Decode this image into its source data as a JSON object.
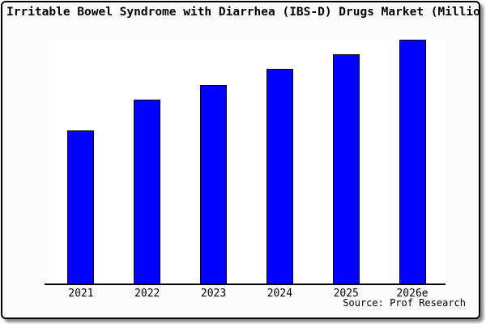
{
  "chart": {
    "title": "Irritable Bowel Syndrome with Diarrhea (IBS-D) Drugs Market (Millio",
    "source": "Source: Prof Research",
    "bar_color": "#0000fe",
    "background_color": "#fafafa",
    "plot_background_color": "#ffffff"
  },
  "chart_data": {
    "type": "bar",
    "title": "Irritable Bowel Syndrome with Diarrhea (IBS-D) Drugs Market (Millio",
    "categories": [
      "2021",
      "2022",
      "2023",
      "2024",
      "2025",
      "2026e"
    ],
    "values": [
      62.8,
      75.2,
      81.4,
      88.0,
      93.9,
      100.0
    ],
    "xlabel": "",
    "ylabel": "",
    "ylim": [
      0,
      101
    ],
    "grid": false,
    "legend": false,
    "y_axis_ticks_visible": false,
    "note": "No y-axis scale shown in image; values are relative bar heights normalized to tallest bar (2026e = 100)",
    "annotations": [
      "Source: Prof Research"
    ]
  }
}
